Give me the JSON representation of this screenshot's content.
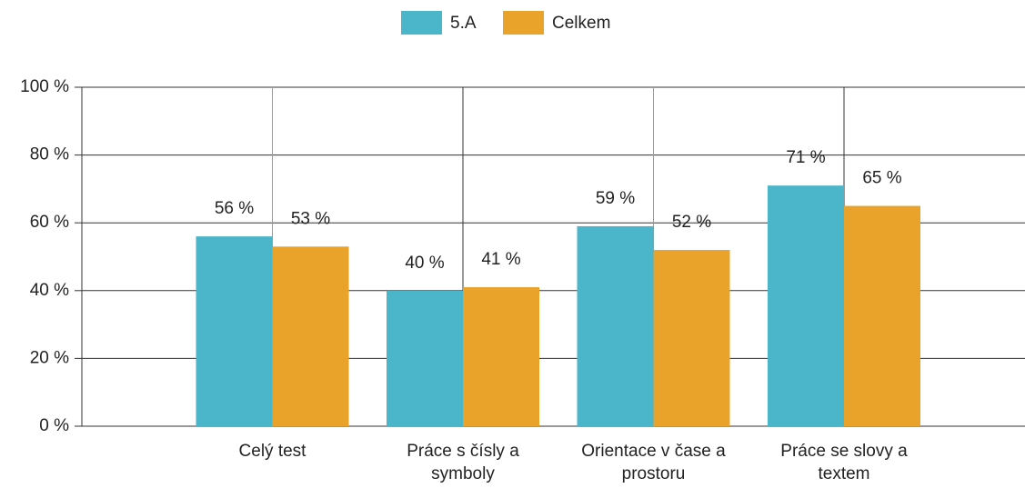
{
  "chart_data": {
    "type": "bar",
    "categories": [
      "Celý test",
      "Práce s čísly a symboly",
      "Orientace v čase a prostoru",
      "Práce se slovy a textem"
    ],
    "series": [
      {
        "name": "5.A",
        "color": "#4bb5c9",
        "values": [
          56,
          40,
          59,
          71
        ],
        "value_labels": [
          "56 %",
          "40 %",
          "59 %",
          "71 %"
        ]
      },
      {
        "name": "Celkem",
        "color": "#e9a32b",
        "values": [
          53,
          41,
          52,
          65
        ],
        "value_labels": [
          "53 %",
          "41 %",
          "52 %",
          "65 %"
        ]
      }
    ],
    "ylim": [
      0,
      100
    ],
    "yticks": [
      {
        "value": 0,
        "label": "0 %"
      },
      {
        "value": 20,
        "label": "20 %"
      },
      {
        "value": 40,
        "label": "40 %"
      },
      {
        "value": 60,
        "label": "60 %"
      },
      {
        "value": 80,
        "label": "80 %"
      },
      {
        "value": 100,
        "label": "100 %"
      }
    ],
    "grid": true,
    "legend": "top"
  }
}
